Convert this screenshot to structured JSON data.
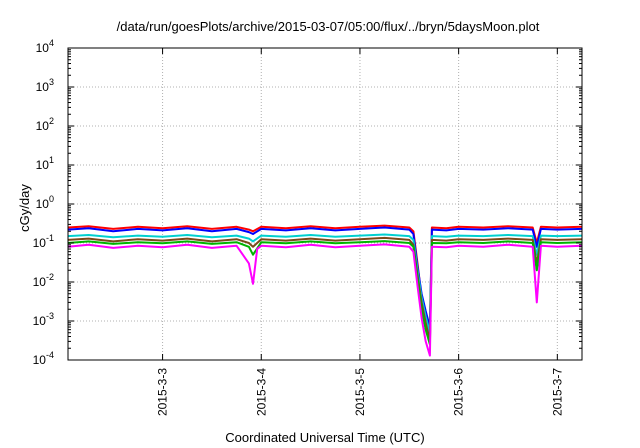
{
  "chart_data": {
    "type": "line",
    "title": "/data/run/goesPlots/archive/2015-03-07/05:00/flux/../bryn/5daysMoon.plot",
    "xlabel": "Coordinated Universal Time (UTC)",
    "ylabel": "cGy/day",
    "y_scale": "log",
    "ylim": [
      0.0001,
      10000
    ],
    "xlim": [
      "2015-03-02 01:00",
      "2015-03-07 06:00"
    ],
    "grid": true,
    "x_ticks": [
      {
        "date": "2015-03-03",
        "label": "2015-3-3"
      },
      {
        "date": "2015-03-04",
        "label": "2015-3-4"
      },
      {
        "date": "2015-03-05",
        "label": "2015-3-5"
      },
      {
        "date": "2015-03-06",
        "label": "2015-3-6"
      },
      {
        "date": "2015-03-07",
        "label": "2015-3-7"
      }
    ],
    "y_ticks": [
      {
        "value": 0.0001,
        "mantissa": "10",
        "exp": "-4"
      },
      {
        "value": 0.001,
        "mantissa": "10",
        "exp": "-3"
      },
      {
        "value": 0.01,
        "mantissa": "10",
        "exp": "-2"
      },
      {
        "value": 0.1,
        "mantissa": "10",
        "exp": "-1"
      },
      {
        "value": 1,
        "mantissa": "10",
        "exp": "0"
      },
      {
        "value": 10,
        "mantissa": "10",
        "exp": "1"
      },
      {
        "value": 100,
        "mantissa": "10",
        "exp": "2"
      },
      {
        "value": 1000,
        "mantissa": "10",
        "exp": "3"
      },
      {
        "value": 10000,
        "mantissa": "10",
        "exp": "4"
      }
    ],
    "series": [
      {
        "color": "#ff0000",
        "base": 0.25,
        "points": [
          [
            "2015-03-02 01:00",
            0.25
          ],
          [
            "2015-03-02 06:00",
            0.27
          ],
          [
            "2015-03-02 12:00",
            0.23
          ],
          [
            "2015-03-02 18:00",
            0.26
          ],
          [
            "2015-03-03 00:00",
            0.24
          ],
          [
            "2015-03-03 06:00",
            0.27
          ],
          [
            "2015-03-03 12:00",
            0.23
          ],
          [
            "2015-03-03 18:00",
            0.26
          ],
          [
            "2015-03-03 21:00",
            0.22
          ],
          [
            "2015-03-03 22:00",
            0.2
          ],
          [
            "2015-03-04 00:00",
            0.26
          ],
          [
            "2015-03-04 06:00",
            0.24
          ],
          [
            "2015-03-04 12:00",
            0.27
          ],
          [
            "2015-03-04 18:00",
            0.24
          ],
          [
            "2015-03-05 00:00",
            0.26
          ],
          [
            "2015-03-05 06:00",
            0.28
          ],
          [
            "2015-03-05 12:00",
            0.25
          ],
          [
            "2015-03-05 13:00",
            0.2
          ],
          [
            "2015-03-05 14:00",
            0.03
          ],
          [
            "2015-03-05 15:00",
            0.004
          ],
          [
            "2015-03-05 16:00",
            0.0012
          ],
          [
            "2015-03-05 17:00",
            0.0004
          ],
          [
            "2015-03-05 17:30",
            0.25
          ],
          [
            "2015-03-05 21:00",
            0.24
          ],
          [
            "2015-03-06 00:00",
            0.26
          ],
          [
            "2015-03-06 06:00",
            0.25
          ],
          [
            "2015-03-06 12:00",
            0.27
          ],
          [
            "2015-03-06 18:00",
            0.25
          ],
          [
            "2015-03-06 19:00",
            0.1
          ],
          [
            "2015-03-06 20:00",
            0.26
          ],
          [
            "2015-03-07 00:00",
            0.25
          ],
          [
            "2015-03-07 06:00",
            0.26
          ]
        ]
      },
      {
        "color": "#0000ff",
        "base": 0.22,
        "points": [
          [
            "2015-03-02 01:00",
            0.22
          ],
          [
            "2015-03-02 06:00",
            0.24
          ],
          [
            "2015-03-02 12:00",
            0.2
          ],
          [
            "2015-03-02 18:00",
            0.23
          ],
          [
            "2015-03-03 00:00",
            0.21
          ],
          [
            "2015-03-03 06:00",
            0.24
          ],
          [
            "2015-03-03 12:00",
            0.2
          ],
          [
            "2015-03-03 18:00",
            0.23
          ],
          [
            "2015-03-03 21:00",
            0.19
          ],
          [
            "2015-03-03 22:00",
            0.17
          ],
          [
            "2015-03-04 00:00",
            0.23
          ],
          [
            "2015-03-04 06:00",
            0.21
          ],
          [
            "2015-03-04 12:00",
            0.24
          ],
          [
            "2015-03-04 18:00",
            0.21
          ],
          [
            "2015-03-05 00:00",
            0.23
          ],
          [
            "2015-03-05 06:00",
            0.25
          ],
          [
            "2015-03-05 12:00",
            0.22
          ],
          [
            "2015-03-05 13:00",
            0.17
          ],
          [
            "2015-03-05 14:00",
            0.025
          ],
          [
            "2015-03-05 15:00",
            0.005
          ],
          [
            "2015-03-05 16:00",
            0.0018
          ],
          [
            "2015-03-05 17:00",
            0.0007
          ],
          [
            "2015-03-05 17:30",
            0.22
          ],
          [
            "2015-03-05 21:00",
            0.21
          ],
          [
            "2015-03-06 00:00",
            0.23
          ],
          [
            "2015-03-06 06:00",
            0.22
          ],
          [
            "2015-03-06 12:00",
            0.24
          ],
          [
            "2015-03-06 18:00",
            0.22
          ],
          [
            "2015-03-06 19:00",
            0.08
          ],
          [
            "2015-03-06 20:00",
            0.23
          ],
          [
            "2015-03-07 00:00",
            0.22
          ],
          [
            "2015-03-07 06:00",
            0.23
          ]
        ]
      },
      {
        "color": "#00d0d0",
        "base": 0.15,
        "points": [
          [
            "2015-03-02 01:00",
            0.15
          ],
          [
            "2015-03-02 06:00",
            0.16
          ],
          [
            "2015-03-02 12:00",
            0.14
          ],
          [
            "2015-03-02 18:00",
            0.155
          ],
          [
            "2015-03-03 00:00",
            0.145
          ],
          [
            "2015-03-03 06:00",
            0.16
          ],
          [
            "2015-03-03 12:00",
            0.14
          ],
          [
            "2015-03-03 18:00",
            0.155
          ],
          [
            "2015-03-03 21:00",
            0.13
          ],
          [
            "2015-03-03 22:00",
            0.11
          ],
          [
            "2015-03-04 00:00",
            0.155
          ],
          [
            "2015-03-04 06:00",
            0.145
          ],
          [
            "2015-03-04 12:00",
            0.16
          ],
          [
            "2015-03-04 18:00",
            0.145
          ],
          [
            "2015-03-05 00:00",
            0.155
          ],
          [
            "2015-03-05 06:00",
            0.165
          ],
          [
            "2015-03-05 12:00",
            0.15
          ],
          [
            "2015-03-05 13:00",
            0.12
          ],
          [
            "2015-03-05 14:00",
            0.02
          ],
          [
            "2015-03-05 15:00",
            0.004
          ],
          [
            "2015-03-05 16:00",
            0.0013
          ],
          [
            "2015-03-05 17:00",
            0.0005
          ],
          [
            "2015-03-05 17:30",
            0.15
          ],
          [
            "2015-03-05 21:00",
            0.145
          ],
          [
            "2015-03-06 00:00",
            0.155
          ],
          [
            "2015-03-06 06:00",
            0.15
          ],
          [
            "2015-03-06 12:00",
            0.16
          ],
          [
            "2015-03-06 18:00",
            0.15
          ],
          [
            "2015-03-06 19:00",
            0.05
          ],
          [
            "2015-03-06 20:00",
            0.155
          ],
          [
            "2015-03-07 00:00",
            0.15
          ],
          [
            "2015-03-07 06:00",
            0.155
          ]
        ]
      },
      {
        "color": "#7a4a1a",
        "base": 0.12,
        "points": [
          [
            "2015-03-02 01:00",
            0.12
          ],
          [
            "2015-03-02 06:00",
            0.13
          ],
          [
            "2015-03-02 12:00",
            0.11
          ],
          [
            "2015-03-02 18:00",
            0.125
          ],
          [
            "2015-03-03 00:00",
            0.115
          ],
          [
            "2015-03-03 06:00",
            0.13
          ],
          [
            "2015-03-03 12:00",
            0.11
          ],
          [
            "2015-03-03 18:00",
            0.125
          ],
          [
            "2015-03-03 21:00",
            0.1
          ],
          [
            "2015-03-03 22:00",
            0.08
          ],
          [
            "2015-03-04 00:00",
            0.125
          ],
          [
            "2015-03-04 06:00",
            0.115
          ],
          [
            "2015-03-04 12:00",
            0.13
          ],
          [
            "2015-03-04 18:00",
            0.115
          ],
          [
            "2015-03-05 00:00",
            0.125
          ],
          [
            "2015-03-05 06:00",
            0.135
          ],
          [
            "2015-03-05 12:00",
            0.12
          ],
          [
            "2015-03-05 13:00",
            0.09
          ],
          [
            "2015-03-05 14:00",
            0.015
          ],
          [
            "2015-03-05 15:00",
            0.003
          ],
          [
            "2015-03-05 16:00",
            0.0009
          ],
          [
            "2015-03-05 17:00",
            0.0003
          ],
          [
            "2015-03-05 17:30",
            0.12
          ],
          [
            "2015-03-05 21:00",
            0.115
          ],
          [
            "2015-03-06 00:00",
            0.125
          ],
          [
            "2015-03-06 06:00",
            0.12
          ],
          [
            "2015-03-06 12:00",
            0.13
          ],
          [
            "2015-03-06 18:00",
            0.12
          ],
          [
            "2015-03-06 19:00",
            0.03
          ],
          [
            "2015-03-06 20:00",
            0.125
          ],
          [
            "2015-03-07 00:00",
            0.12
          ],
          [
            "2015-03-07 06:00",
            0.125
          ]
        ]
      },
      {
        "color": "#00b400",
        "base": 0.1,
        "points": [
          [
            "2015-03-02 01:00",
            0.1
          ],
          [
            "2015-03-02 06:00",
            0.11
          ],
          [
            "2015-03-02 12:00",
            0.095
          ],
          [
            "2015-03-02 18:00",
            0.105
          ],
          [
            "2015-03-03 00:00",
            0.098
          ],
          [
            "2015-03-03 06:00",
            0.11
          ],
          [
            "2015-03-03 12:00",
            0.095
          ],
          [
            "2015-03-03 18:00",
            0.105
          ],
          [
            "2015-03-03 21:00",
            0.08
          ],
          [
            "2015-03-03 22:00",
            0.05
          ],
          [
            "2015-03-04 00:00",
            0.105
          ],
          [
            "2015-03-04 06:00",
            0.098
          ],
          [
            "2015-03-04 12:00",
            0.11
          ],
          [
            "2015-03-04 18:00",
            0.098
          ],
          [
            "2015-03-05 00:00",
            0.105
          ],
          [
            "2015-03-05 06:00",
            0.112
          ],
          [
            "2015-03-05 12:00",
            0.1
          ],
          [
            "2015-03-05 13:00",
            0.08
          ],
          [
            "2015-03-05 14:00",
            0.012
          ],
          [
            "2015-03-05 15:00",
            0.002
          ],
          [
            "2015-03-05 16:00",
            0.0006
          ],
          [
            "2015-03-05 17:00",
            0.00025
          ],
          [
            "2015-03-05 17:30",
            0.1
          ],
          [
            "2015-03-05 21:00",
            0.098
          ],
          [
            "2015-03-06 00:00",
            0.105
          ],
          [
            "2015-03-06 06:00",
            0.1
          ],
          [
            "2015-03-06 12:00",
            0.11
          ],
          [
            "2015-03-06 18:00",
            0.1
          ],
          [
            "2015-03-06 19:00",
            0.02
          ],
          [
            "2015-03-06 20:00",
            0.105
          ],
          [
            "2015-03-07 00:00",
            0.1
          ],
          [
            "2015-03-07 06:00",
            0.105
          ]
        ]
      },
      {
        "color": "#ff00ff",
        "base": 0.08,
        "points": [
          [
            "2015-03-02 01:00",
            0.08
          ],
          [
            "2015-03-02 06:00",
            0.09
          ],
          [
            "2015-03-02 12:00",
            0.075
          ],
          [
            "2015-03-02 18:00",
            0.085
          ],
          [
            "2015-03-03 00:00",
            0.078
          ],
          [
            "2015-03-03 06:00",
            0.09
          ],
          [
            "2015-03-03 12:00",
            0.075
          ],
          [
            "2015-03-03 18:00",
            0.085
          ],
          [
            "2015-03-03 21:00",
            0.03
          ],
          [
            "2015-03-03 22:00",
            0.009
          ],
          [
            "2015-03-03 23:00",
            0.07
          ],
          [
            "2015-03-04 00:00",
            0.085
          ],
          [
            "2015-03-04 06:00",
            0.078
          ],
          [
            "2015-03-04 12:00",
            0.09
          ],
          [
            "2015-03-04 18:00",
            0.078
          ],
          [
            "2015-03-05 00:00",
            0.085
          ],
          [
            "2015-03-05 06:00",
            0.092
          ],
          [
            "2015-03-05 12:00",
            0.08
          ],
          [
            "2015-03-05 13:00",
            0.06
          ],
          [
            "2015-03-05 14:00",
            0.008
          ],
          [
            "2015-03-05 15:00",
            0.0012
          ],
          [
            "2015-03-05 16:00",
            0.0003
          ],
          [
            "2015-03-05 17:00",
            0.00013
          ],
          [
            "2015-03-05 17:30",
            0.08
          ],
          [
            "2015-03-05 21:00",
            0.078
          ],
          [
            "2015-03-06 00:00",
            0.085
          ],
          [
            "2015-03-06 06:00",
            0.08
          ],
          [
            "2015-03-06 12:00",
            0.09
          ],
          [
            "2015-03-06 18:00",
            0.08
          ],
          [
            "2015-03-06 19:00",
            0.003
          ],
          [
            "2015-03-06 20:00",
            0.085
          ],
          [
            "2015-03-07 00:00",
            0.08
          ],
          [
            "2015-03-07 06:00",
            0.085
          ]
        ]
      }
    ]
  }
}
